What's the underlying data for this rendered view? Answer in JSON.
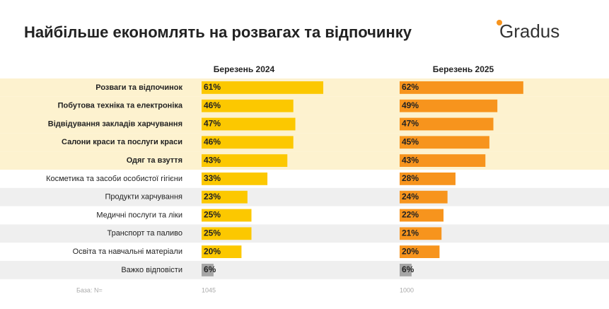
{
  "chart_data": {
    "type": "paired-bar",
    "title": "Найбільше економлять на розвагах та відпочинку",
    "logo": "Gradus",
    "categories": [
      "Розваги та відпочинок",
      "Побутова техніка та електроніка",
      "Відвідування закладів харчування",
      "Салони краси та послуги краси",
      "Одяг та взуття",
      "Косметика та засоби особистої гігієни",
      "Продукти харчування",
      "Медичні послуги та ліки",
      "Транспорт та паливо",
      "Освіта та навчальні матеріали",
      "Важко відповісти"
    ],
    "highlighted": [
      true,
      true,
      true,
      true,
      true,
      false,
      false,
      false,
      false,
      false,
      false
    ],
    "xlim": [
      0,
      100
    ],
    "base_label": "База: N=",
    "series": [
      {
        "name": "Березень 2024",
        "color": "#fcc800",
        "base": 1045,
        "colors": [
          "#fcc800",
          "#fcc800",
          "#fcc800",
          "#fcc800",
          "#fcc800",
          "#fcc800",
          "#fcc800",
          "#fcc800",
          "#fcc800",
          "#fcc800",
          "#a6a6a6"
        ],
        "values": [
          61,
          46,
          47,
          46,
          43,
          33,
          23,
          25,
          25,
          20,
          6
        ],
        "value_labels": [
          "61%",
          "46%",
          "47%",
          "46%",
          "43%",
          "33%",
          "23%",
          "25%",
          "25%",
          "20%",
          "6%"
        ]
      },
      {
        "name": "Березень 2025",
        "color": "#f7941d",
        "base": 1000,
        "colors": [
          "#f7941d",
          "#f7941d",
          "#f7941d",
          "#f7941d",
          "#f7941d",
          "#f7941d",
          "#f7941d",
          "#f7941d",
          "#f7941d",
          "#f7941d",
          "#a6a6a6"
        ],
        "values": [
          62,
          49,
          47,
          45,
          43,
          28,
          24,
          22,
          21,
          20,
          6
        ],
        "value_labels": [
          "62%",
          "49%",
          "47%",
          "45%",
          "43%",
          "28%",
          "24%",
          "22%",
          "21%",
          "20%",
          "6%"
        ]
      }
    ]
  }
}
